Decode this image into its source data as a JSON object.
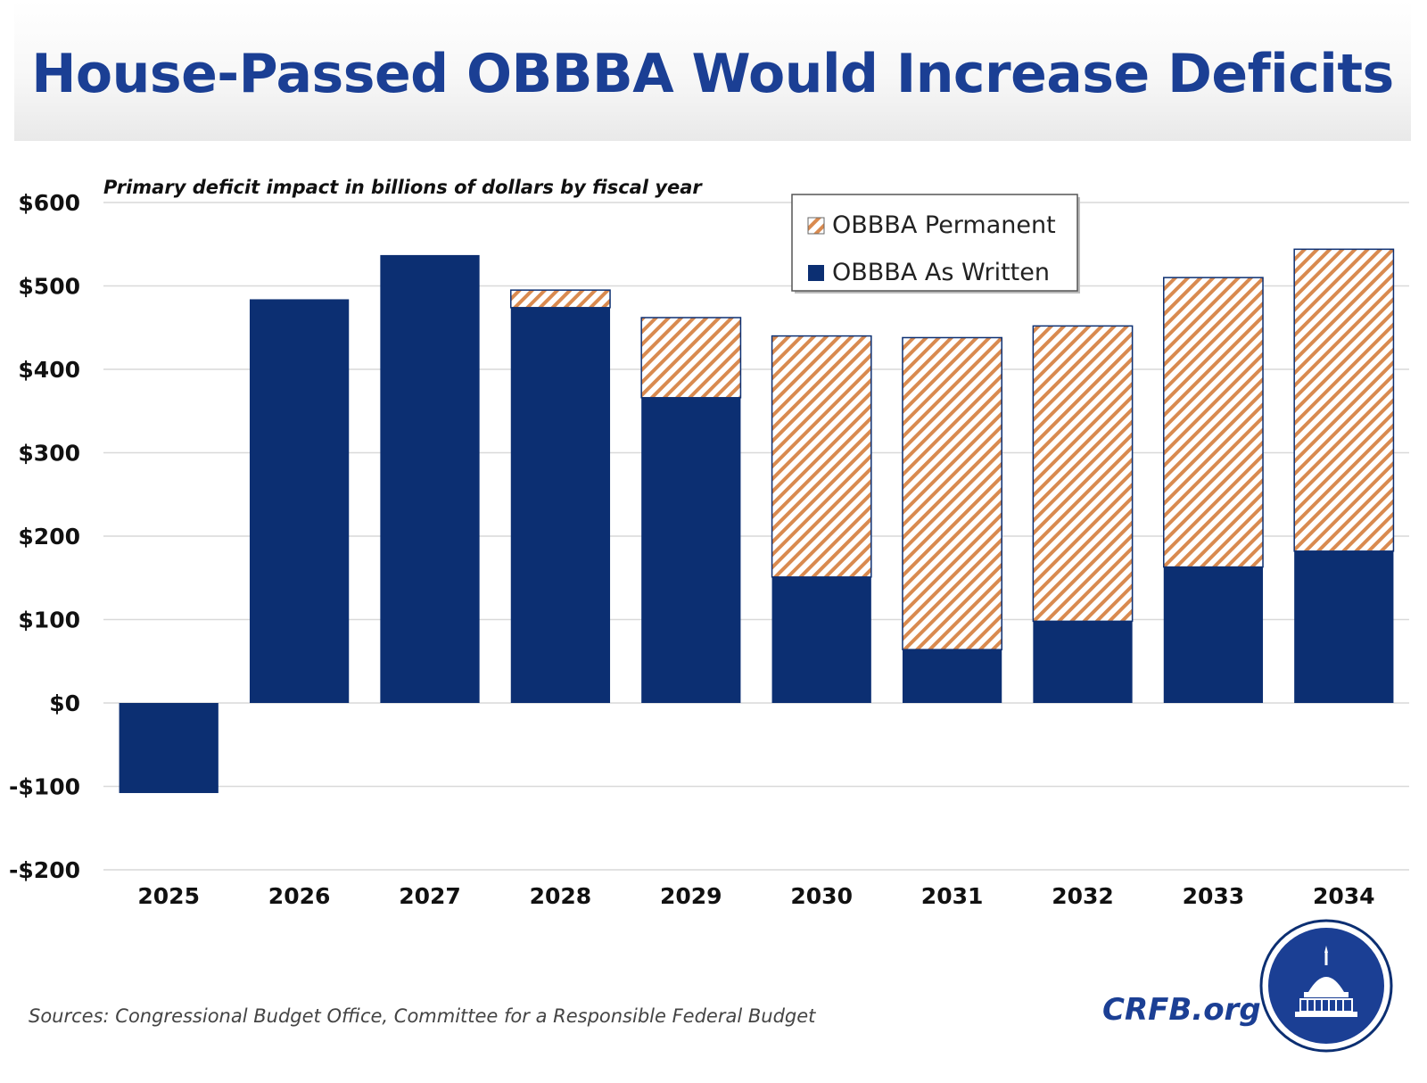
{
  "chart_data": {
    "type": "bar",
    "stacked": true,
    "title": "House-Passed OBBBA Would Increase Deficits",
    "subtitle": "Primary deficit impact in billions of dollars by fiscal year",
    "categories": [
      "2025",
      "2026",
      "2027",
      "2028",
      "2029",
      "2030",
      "2031",
      "2032",
      "2033",
      "2034"
    ],
    "series": [
      {
        "name": "OBBBA As Written",
        "color": "#0c2f72",
        "pattern": "solid",
        "values": [
          -108,
          484,
          537,
          474,
          366,
          151,
          64,
          98,
          163,
          182
        ]
      },
      {
        "name": "OBBBA Permanent",
        "color": "#d98a4f",
        "pattern": "diagonal-hatch",
        "values": [
          0,
          0,
          0,
          21,
          96,
          289,
          374,
          354,
          347,
          362
        ]
      }
    ],
    "ylim": [
      -200,
      600
    ],
    "yticks": [
      600,
      500,
      400,
      300,
      200,
      100,
      0,
      -100,
      -200
    ],
    "ytick_labels": [
      "$600",
      "$500",
      "$400",
      "$300",
      "$200",
      "$100",
      "$0",
      "-$100",
      "-$200"
    ],
    "xlabel": "",
    "ylabel": "",
    "grid": true,
    "legend_position": "top-center",
    "legend_order": [
      "OBBBA Permanent",
      "OBBBA As Written"
    ]
  },
  "footer": {
    "source": "Sources: Congressional Budget Office, Committee for a Responsible Federal Budget",
    "brand": "CRFB.org"
  },
  "icons": {
    "logo": "capitol-dome-seal-icon"
  }
}
